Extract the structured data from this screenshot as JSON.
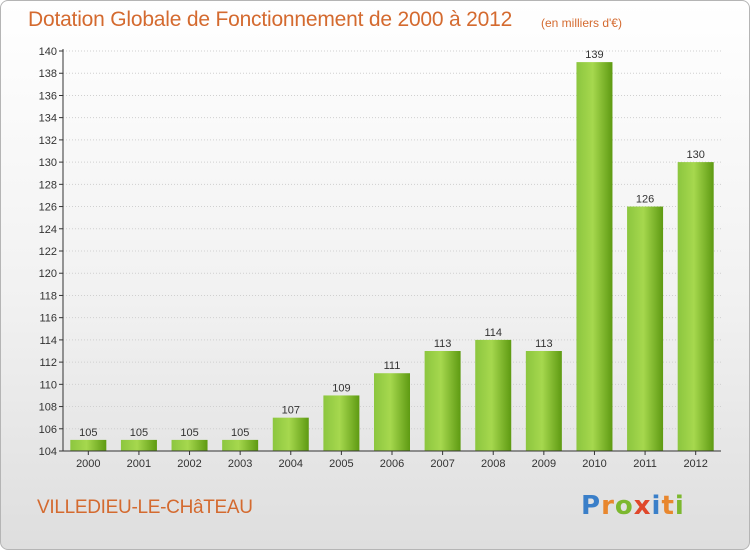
{
  "title": "Dotation Globale de Fonctionnement de 2000 à 2012",
  "subtitle": "(en milliers d'€)",
  "commune": "VILLEDIEU-LE-CHâTEAU",
  "logo": {
    "letters": [
      "P",
      "r",
      "o",
      "x",
      "i",
      "t",
      "i"
    ],
    "colors": [
      "#3a7fc9",
      "#e8872e",
      "#7cb82f",
      "#e0472b",
      "#3a7fc9",
      "#e8872e",
      "#7cb82f"
    ]
  },
  "colors": {
    "bar_light": "#a6d84e",
    "bar_dark": "#5e9a12",
    "accent": "#d46a2f",
    "grid": "#d0d0d0"
  },
  "chart_data": {
    "type": "bar",
    "categories": [
      "2000",
      "2001",
      "2002",
      "2003",
      "2004",
      "2005",
      "2006",
      "2007",
      "2008",
      "2009",
      "2010",
      "2011",
      "2012"
    ],
    "values": [
      105,
      105,
      105,
      105,
      107,
      109,
      111,
      113,
      114,
      113,
      139,
      126,
      130
    ],
    "ylim": [
      104,
      140
    ],
    "yticks": [
      104,
      106,
      108,
      110,
      112,
      114,
      116,
      118,
      120,
      122,
      124,
      126,
      128,
      130,
      132,
      134,
      136,
      138,
      140
    ],
    "grid": "horizontal",
    "xlabel": "",
    "ylabel": ""
  }
}
